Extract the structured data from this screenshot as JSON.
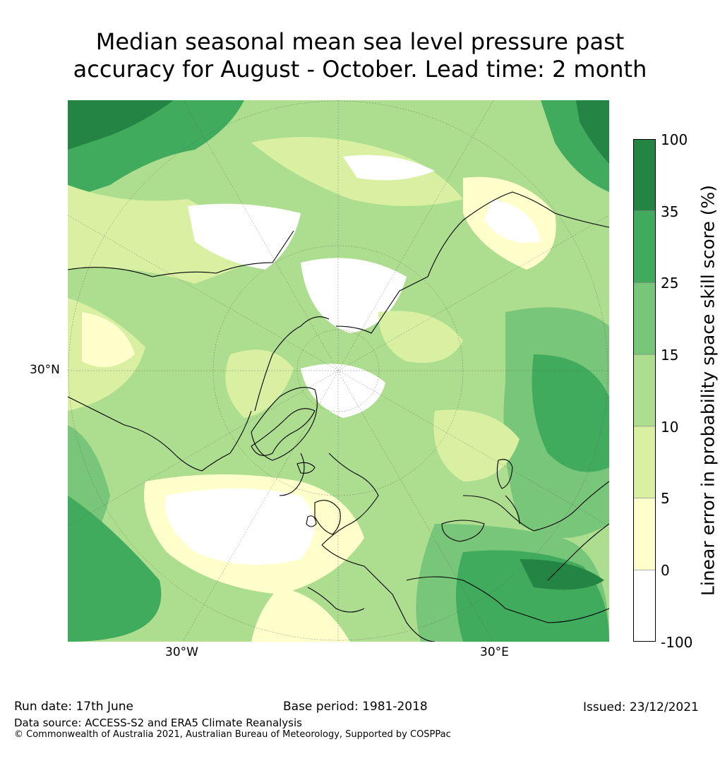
{
  "title": {
    "line1": "Median seasonal mean sea level pressure past",
    "line2": "accuracy for August - October. Lead time: 2 month"
  },
  "map": {
    "projection": "north-polar-stereographic",
    "lat_labels": [
      "30°N"
    ],
    "lon_labels": [
      "30°W",
      "30°E"
    ],
    "regions": [
      {
        "name": "tropical-atlantic-africa",
        "category": "25-35"
      },
      {
        "name": "mid-atlantic-gulf",
        "category": "0-5"
      },
      {
        "name": "arctic-core",
        "category": "-100-0"
      },
      {
        "name": "eurasia",
        "category": "5-15"
      },
      {
        "name": "middle-east",
        "category": "25-35"
      }
    ]
  },
  "colorbar": {
    "label": "Linear error in probability space skill score (%)",
    "ticks": [
      "-100",
      "0",
      "5",
      "10",
      "15",
      "25",
      "35",
      "100"
    ],
    "levels": [
      {
        "range": "-100 to 0",
        "color": "#ffffff"
      },
      {
        "range": "0 to 5",
        "color": "#ffffcc"
      },
      {
        "range": "5 to 10",
        "color": "#d9f0a3"
      },
      {
        "range": "10 to 15",
        "color": "#addd8e"
      },
      {
        "range": "15 to 25",
        "color": "#78c679"
      },
      {
        "range": "25 to 35",
        "color": "#41ab5d"
      },
      {
        "range": "35 to 100",
        "color": "#238443"
      }
    ]
  },
  "footer": {
    "run_date": "Run date: 17th June",
    "base_period": "Base period: 1981-2018",
    "issued": "Issued: 23/12/2021",
    "data_source": "Data source: ACCESS-S2 and ERA5 Climate Reanalysis",
    "copyright": "© Commonwealth of Australia 2021, Australian Bureau of Meteorology, Supported by COSPPac"
  }
}
